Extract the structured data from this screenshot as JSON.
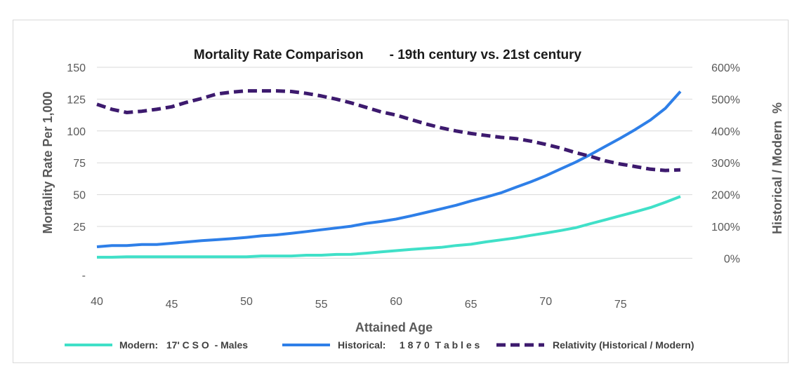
{
  "chart_data": {
    "type": "line",
    "title": "Mortality Rate Comparison       - 19th century vs. 21st century",
    "xlabel": "Attained Age",
    "ylabel": "Mortality Rate Per 1,000",
    "y2label": "Historical / Modern  %",
    "xlim": [
      40,
      79.8
    ],
    "ylim": [
      -13,
      150
    ],
    "y2lim": [
      -52,
      600
    ],
    "x_ticks": [
      40,
      45,
      50,
      55,
      60,
      65,
      70,
      75
    ],
    "x_tick_labels": [
      "40",
      "45",
      "50",
      "55",
      "60",
      "65",
      "70",
      "75"
    ],
    "y_ticks": [
      -13,
      25,
      50,
      75,
      100,
      125,
      150
    ],
    "y_tick_labels": [
      "-",
      "25",
      "50",
      "75",
      "100",
      "125",
      "150"
    ],
    "y2_ticks": [
      0,
      100,
      200,
      300,
      400,
      500,
      600
    ],
    "y2_tick_labels": [
      "0%",
      "100%",
      "200%",
      "300%",
      "400%",
      "500%",
      "600%"
    ],
    "x": [
      40,
      41,
      42,
      43,
      44,
      45,
      46,
      47,
      48,
      49,
      50,
      51,
      52,
      53,
      54,
      55,
      56,
      57,
      58,
      59,
      60,
      61,
      62,
      63,
      64,
      65,
      66,
      67,
      68,
      69,
      70,
      71,
      72,
      73,
      74,
      75,
      76,
      77,
      78,
      79
    ],
    "series": [
      {
        "name": "Modern:   17' C S O  - Males",
        "axis": "left",
        "color": "#40E0C8",
        "dash": "solid",
        "values": [
          0.8,
          0.8,
          1.2,
          1.2,
          1.2,
          1.2,
          1.2,
          1.2,
          1.2,
          1.2,
          1.2,
          1.8,
          1.8,
          1.8,
          2.4,
          2.4,
          3,
          3.1,
          4,
          5,
          6,
          7,
          7.8,
          8.6,
          10,
          11,
          12.9,
          14.4,
          16,
          18,
          19.8,
          21.8,
          24,
          27.2,
          30.3,
          33.4,
          36.5,
          39.8,
          44,
          48.5
        ]
      },
      {
        "name": "Historical:     1 8 7 0  T a b l e s",
        "axis": "left",
        "color": "#2E7FE8",
        "dash": "solid",
        "values": [
          9,
          10,
          10,
          10.8,
          10.8,
          11.8,
          12.8,
          13.8,
          14.6,
          15.4,
          16.4,
          17.6,
          18.4,
          19.6,
          21,
          22.4,
          23.8,
          25.2,
          27.4,
          28.9,
          30.8,
          33.3,
          36,
          38.8,
          41.6,
          45,
          48,
          51.4,
          55.8,
          60,
          64.8,
          70.2,
          75.5,
          81.5,
          88,
          94.4,
          101.2,
          108.6,
          117.8,
          131
        ]
      },
      {
        "name": "Relativity (Historical / Modern)",
        "axis": "right",
        "color": "#3D1A6E",
        "dash": "dashed",
        "values": [
          484,
          468,
          458,
          462,
          468,
          476,
          490,
          502,
          516,
          522,
          526,
          526,
          526,
          524,
          518,
          510,
          500,
          488,
          474,
          460,
          450,
          436,
          422,
          410,
          400,
          392,
          386,
          380,
          376,
          368,
          358,
          346,
          332,
          320,
          306,
          296,
          288,
          280,
          276,
          278
        ]
      }
    ],
    "legend_position": "bottom",
    "gridlines": "horizontal"
  }
}
